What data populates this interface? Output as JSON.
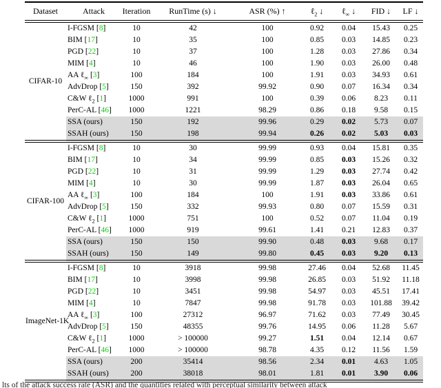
{
  "colors": {
    "citation_green": "#00d900",
    "highlight_gray": "#d9d9d9"
  },
  "caption_fragment": "lts of the attack success rate (ASR) and the quantities related with perceptual similarity between attack",
  "table": {
    "columns": [
      {
        "key": "dataset",
        "pre": "Dataset",
        "sub": "",
        "post": ""
      },
      {
        "key": "attack",
        "pre": "Attack",
        "sub": "",
        "post": ""
      },
      {
        "key": "iteration",
        "pre": "Iteration",
        "sub": "",
        "post": ""
      },
      {
        "key": "runtime",
        "pre": "RunTime (s)",
        "sub": "",
        "post": " ↓"
      },
      {
        "key": "asr",
        "pre": "ASR (%)",
        "sub": "",
        "post": " ↑"
      },
      {
        "key": "l2",
        "pre": "ℓ",
        "sub": "2",
        "post": " ↓"
      },
      {
        "key": "linf",
        "pre": "ℓ",
        "sub": "∞",
        "post": " ↓"
      },
      {
        "key": "fid",
        "pre": "FID",
        "sub": "",
        "post": " ↓"
      },
      {
        "key": "lf",
        "pre": "LF",
        "sub": "",
        "post": " ↓"
      }
    ],
    "sections": [
      {
        "dataset": "CIFAR-10",
        "rows": [
          {
            "attack": {
              "pre": "I-FGSM",
              "sub": "",
              "ref": "8"
            },
            "values": [
              "10",
              "42",
              "100",
              "0.92",
              "0.04",
              "15.43",
              "0.25"
            ],
            "bold": [],
            "highlight": false
          },
          {
            "attack": {
              "pre": "BIM",
              "sub": "",
              "ref": "17"
            },
            "values": [
              "10",
              "35",
              "100",
              "0.85",
              "0.03",
              "14.85",
              "0.23"
            ],
            "bold": [],
            "highlight": false
          },
          {
            "attack": {
              "pre": "PGD",
              "sub": "",
              "ref": "22"
            },
            "values": [
              "10",
              "37",
              "100",
              "1.28",
              "0.03",
              "27.86",
              "0.34"
            ],
            "bold": [],
            "highlight": false
          },
          {
            "attack": {
              "pre": "MIM",
              "sub": "",
              "ref": "4"
            },
            "values": [
              "10",
              "46",
              "100",
              "1.90",
              "0.03",
              "26.00",
              "0.48"
            ],
            "bold": [],
            "highlight": false
          },
          {
            "attack": {
              "pre": "AA ℓ",
              "sub": "∞",
              "ref": "3"
            },
            "values": [
              "100",
              "184",
              "100",
              "1.91",
              "0.03",
              "34.93",
              "0.61"
            ],
            "bold": [],
            "highlight": false
          },
          {
            "attack": {
              "pre": "AdvDrop",
              "sub": "",
              "ref": "5"
            },
            "values": [
              "150",
              "392",
              "99.92",
              "0.90",
              "0.07",
              "16.34",
              "0.34"
            ],
            "bold": [],
            "highlight": false
          },
          {
            "attack": {
              "pre": "C&W ℓ",
              "sub": "2",
              "ref": "1"
            },
            "values": [
              "1000",
              "991",
              "100",
              "0.39",
              "0.06",
              "8.23",
              "0.11"
            ],
            "bold": [],
            "highlight": false
          },
          {
            "attack": {
              "pre": "PerC-AL",
              "sub": "",
              "ref": "46"
            },
            "values": [
              "1000",
              "1221",
              "98.29",
              "0.86",
              "0.18",
              "9.58",
              "0.15"
            ],
            "bold": [],
            "highlight": false
          },
          {
            "attack": {
              "pre": "SSA (ours)",
              "sub": "",
              "ref": ""
            },
            "values": [
              "150",
              "192",
              "99.96",
              "0.29",
              "0.02",
              "5.73",
              "0.07"
            ],
            "bold": [
              4
            ],
            "highlight": true
          },
          {
            "attack": {
              "pre": "SSAH (ours)",
              "sub": "",
              "ref": ""
            },
            "values": [
              "150",
              "198",
              "99.94",
              "0.26",
              "0.02",
              "5.03",
              "0.03"
            ],
            "bold": [
              3,
              4,
              5,
              6
            ],
            "highlight": true
          }
        ]
      },
      {
        "dataset": "CIFAR-100",
        "rows": [
          {
            "attack": {
              "pre": "I-FGSM",
              "sub": "",
              "ref": "8"
            },
            "values": [
              "10",
              "30",
              "99.99",
              "0.93",
              "0.04",
              "15.81",
              "0.35"
            ],
            "bold": [],
            "highlight": false
          },
          {
            "attack": {
              "pre": "BIM",
              "sub": "",
              "ref": "17"
            },
            "values": [
              "10",
              "34",
              "99.99",
              "0.85",
              "0.03",
              "15.26",
              "0.32"
            ],
            "bold": [
              4
            ],
            "highlight": false
          },
          {
            "attack": {
              "pre": "PGD",
              "sub": "",
              "ref": "22"
            },
            "values": [
              "10",
              "31",
              "99.99",
              "1.29",
              "0.03",
              "27.74",
              "0.42"
            ],
            "bold": [
              4
            ],
            "highlight": false
          },
          {
            "attack": {
              "pre": "MIM",
              "sub": "",
              "ref": "4"
            },
            "values": [
              "10",
              "30",
              "99.99",
              "1.87",
              "0.03",
              "26.04",
              "0.65"
            ],
            "bold": [
              4
            ],
            "highlight": false
          },
          {
            "attack": {
              "pre": "AA ℓ",
              "sub": "∞",
              "ref": "3"
            },
            "values": [
              "100",
              "184",
              "100",
              "1.91",
              "0.03",
              "33.86",
              "0.61"
            ],
            "bold": [
              4
            ],
            "highlight": false
          },
          {
            "attack": {
              "pre": "AdvDrop",
              "sub": "",
              "ref": "5"
            },
            "values": [
              "150",
              "332",
              "99.93",
              "0.80",
              "0.07",
              "15.59",
              "0.31"
            ],
            "bold": [],
            "highlight": false
          },
          {
            "attack": {
              "pre": "C&W ℓ",
              "sub": "2",
              "ref": "1"
            },
            "values": [
              "1000",
              "751",
              "100",
              "0.52",
              "0.07",
              "11.04",
              "0.19"
            ],
            "bold": [],
            "highlight": false
          },
          {
            "attack": {
              "pre": "PerC-AL",
              "sub": "",
              "ref": "46"
            },
            "values": [
              "1000",
              "919",
              "99.61",
              "1.41",
              "0.21",
              "12.83",
              "0.37"
            ],
            "bold": [],
            "highlight": false
          },
          {
            "attack": {
              "pre": "SSA (ours)",
              "sub": "",
              "ref": ""
            },
            "values": [
              "150",
              "150",
              "99.90",
              "0.48",
              "0.03",
              "9.68",
              "0.17"
            ],
            "bold": [
              4
            ],
            "highlight": true
          },
          {
            "attack": {
              "pre": "SSAH (ours)",
              "sub": "",
              "ref": ""
            },
            "values": [
              "150",
              "149",
              "99.80",
              "0.45",
              "0.03",
              "9.20",
              "0.13"
            ],
            "bold": [
              3,
              4,
              5,
              6
            ],
            "highlight": true
          }
        ]
      },
      {
        "dataset": "ImageNet-1K",
        "rows": [
          {
            "attack": {
              "pre": "I-FGSM",
              "sub": "",
              "ref": "8"
            },
            "values": [
              "10",
              "3918",
              "99.98",
              "27.46",
              "0.04",
              "52.68",
              "11.45"
            ],
            "bold": [],
            "highlight": false
          },
          {
            "attack": {
              "pre": "BIM",
              "sub": "",
              "ref": "17"
            },
            "values": [
              "10",
              "3998",
              "99.98",
              "26.85",
              "0.03",
              "51.92",
              "11.18"
            ],
            "bold": [],
            "highlight": false
          },
          {
            "attack": {
              "pre": "PGD",
              "sub": "",
              "ref": "22"
            },
            "values": [
              "10",
              "3451",
              "99.98",
              "54.97",
              "0.03",
              "45.51",
              "17.41"
            ],
            "bold": [],
            "highlight": false
          },
          {
            "attack": {
              "pre": "MIM",
              "sub": "",
              "ref": "4"
            },
            "values": [
              "10",
              "7847",
              "99.98",
              "91.78",
              "0.03",
              "101.88",
              "39.42"
            ],
            "bold": [],
            "highlight": false
          },
          {
            "attack": {
              "pre": "AA ℓ",
              "sub": "∞",
              "ref": "3"
            },
            "values": [
              "100",
              "27312",
              "96.97",
              "71.62",
              "0.03",
              "77.49",
              "30.45"
            ],
            "bold": [],
            "highlight": false
          },
          {
            "attack": {
              "pre": "AdvDrop",
              "sub": "",
              "ref": "5"
            },
            "values": [
              "150",
              "48355",
              "99.76",
              "14.95",
              "0.06",
              "11.28",
              "5.67"
            ],
            "bold": [],
            "highlight": false
          },
          {
            "attack": {
              "pre": "C&W ℓ",
              "sub": "2",
              "ref": "1"
            },
            "values": [
              "1000",
              "> 100000",
              "99.27",
              "1.51",
              "0.04",
              "12.14",
              "0.67"
            ],
            "bold": [
              3
            ],
            "highlight": false
          },
          {
            "attack": {
              "pre": "PerC-AL",
              "sub": "",
              "ref": "46"
            },
            "values": [
              "1000",
              "> 100000",
              "98.78",
              "4.35",
              "0.12",
              "11.56",
              "1.59"
            ],
            "bold": [],
            "highlight": false
          },
          {
            "attack": {
              "pre": "SSA (ours)",
              "sub": "",
              "ref": ""
            },
            "values": [
              "200",
              "35414",
              "98.56",
              "2.34",
              "0.01",
              "4.63",
              "1.05"
            ],
            "bold": [
              4
            ],
            "highlight": true
          },
          {
            "attack": {
              "pre": "SSAH (ours)",
              "sub": "",
              "ref": ""
            },
            "values": [
              "200",
              "38018",
              "98.01",
              "1.81",
              "0.01",
              "3.90",
              "0.06"
            ],
            "bold": [
              4,
              5,
              6
            ],
            "highlight": true
          }
        ]
      }
    ]
  }
}
